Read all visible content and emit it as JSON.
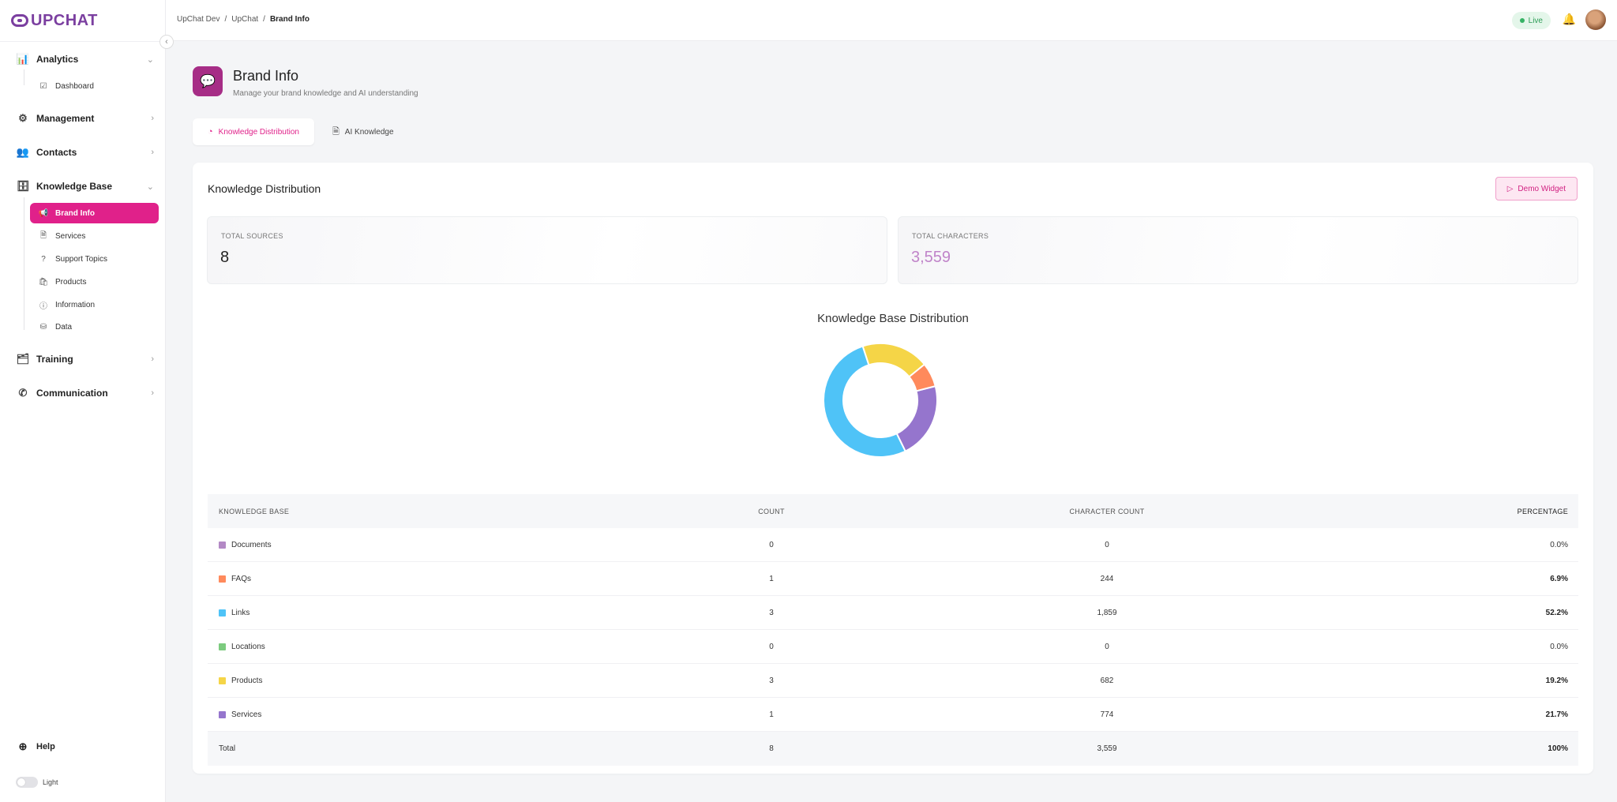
{
  "app": {
    "logo_text": "UPCHAT"
  },
  "breadcrumb": [
    "UpChat Dev",
    "/",
    "UpChat",
    "/",
    "Brand Info"
  ],
  "topbar": {
    "live_label": "Live"
  },
  "sidebar": {
    "collapse_icon": "chevron-left-icon",
    "sections": [
      {
        "label": "Analytics",
        "icon": "bar-chart-icon",
        "expanded": true,
        "children": [
          {
            "label": "Dashboard",
            "icon": "dashboard-icon"
          }
        ]
      },
      {
        "label": "Management",
        "icon": "settings-icon",
        "expanded": false
      },
      {
        "label": "Contacts",
        "icon": "users-icon",
        "expanded": false
      },
      {
        "label": "Knowledge Base",
        "icon": "database-icon",
        "expanded": true,
        "children": [
          {
            "label": "Brand Info",
            "icon": "megaphone-icon",
            "active": true
          },
          {
            "label": "Services",
            "icon": "file-icon"
          },
          {
            "label": "Support Topics",
            "icon": "help-circle-icon"
          },
          {
            "label": "Products",
            "icon": "bag-icon"
          },
          {
            "label": "Information",
            "icon": "info-icon"
          },
          {
            "label": "Data",
            "icon": "cylinder-icon"
          }
        ]
      },
      {
        "label": "Training",
        "icon": "training-icon",
        "expanded": false
      },
      {
        "label": "Communication",
        "icon": "phone-icon",
        "expanded": false
      }
    ],
    "help_label": "Help",
    "theme_label": "Light"
  },
  "page": {
    "title": "Brand Info",
    "subtitle": "Manage your brand knowledge and AI understanding",
    "tabs": [
      {
        "label": "Knowledge Distribution",
        "active": true
      },
      {
        "label": "AI Knowledge",
        "active": false
      }
    ]
  },
  "card": {
    "title": "Knowledge Distribution",
    "demo_button": "Demo Widget",
    "stats": {
      "total_sources_label": "TOTAL SOURCES",
      "total_sources_value": "8",
      "total_characters_label": "TOTAL CHARACTERS",
      "total_characters_value": "3,559"
    }
  },
  "chart_data": {
    "type": "pie",
    "title": "Knowledge Base Distribution",
    "categories": [
      "Documents",
      "FAQs",
      "Links",
      "Locations",
      "Products",
      "Services"
    ],
    "values": [
      0,
      244,
      1859,
      0,
      682,
      774
    ],
    "colors": [
      "#b389c5",
      "#ff8a5c",
      "#4fc3f7",
      "#7ccb7f",
      "#f5d547",
      "#9575cd"
    ],
    "legend": "none"
  },
  "table": {
    "headers": [
      "KNOWLEDGE BASE",
      "COUNT",
      "CHARACTER COUNT",
      "PERCENTAGE"
    ],
    "rows": [
      {
        "name": "Documents",
        "count": "0",
        "chars": "0",
        "pct": "0.0%",
        "color": "#b389c5"
      },
      {
        "name": "FAQs",
        "count": "1",
        "chars": "244",
        "pct": "6.9%",
        "color": "#ff8a5c"
      },
      {
        "name": "Links",
        "count": "3",
        "chars": "1,859",
        "pct": "52.2%",
        "color": "#4fc3f7"
      },
      {
        "name": "Locations",
        "count": "0",
        "chars": "0",
        "pct": "0.0%",
        "color": "#7ccb7f"
      },
      {
        "name": "Products",
        "count": "3",
        "chars": "682",
        "pct": "19.2%",
        "color": "#f5d547"
      },
      {
        "name": "Services",
        "count": "1",
        "chars": "774",
        "pct": "21.7%",
        "color": "#9575cd"
      }
    ],
    "total": {
      "name": "Total",
      "count": "8",
      "chars": "3,559",
      "pct": "100%"
    }
  }
}
